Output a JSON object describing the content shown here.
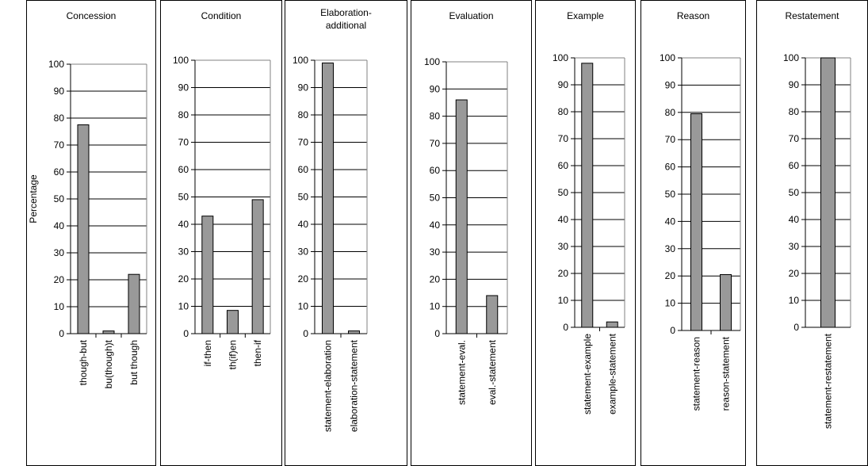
{
  "y_axis_label": "Percentage",
  "chart_data": [
    {
      "type": "bar",
      "title": "Concession",
      "categories": [
        "though-but",
        "bu(though)t",
        "but though"
      ],
      "values": [
        77.5,
        1,
        22
      ],
      "ylim": [
        0,
        100
      ],
      "yticks": [
        0,
        10,
        20,
        30,
        40,
        50,
        60,
        70,
        80,
        90,
        100
      ],
      "grid": true,
      "bar_color": "#999999"
    },
    {
      "type": "bar",
      "title": "Condition",
      "categories": [
        "if-then",
        "th(if)en",
        "then-if"
      ],
      "values": [
        43,
        8.5,
        49
      ],
      "ylim": [
        0,
        100
      ],
      "yticks": [
        0,
        10,
        20,
        30,
        40,
        50,
        60,
        70,
        80,
        90,
        100
      ],
      "grid": true,
      "bar_color": "#999999"
    },
    {
      "type": "bar",
      "title": "Elaboration-additional",
      "categories": [
        "statement-elaboration",
        "elaboration-statement"
      ],
      "values": [
        99,
        1
      ],
      "ylim": [
        0,
        100
      ],
      "yticks": [
        0,
        10,
        20,
        30,
        40,
        50,
        60,
        70,
        80,
        90,
        100
      ],
      "grid": true,
      "bar_color": "#999999"
    },
    {
      "type": "bar",
      "title": "Evaluation",
      "categories": [
        "statement-eval.",
        "eval.-statement"
      ],
      "values": [
        86,
        14
      ],
      "ylim": [
        0,
        100
      ],
      "yticks": [
        0,
        10,
        20,
        30,
        40,
        50,
        60,
        70,
        80,
        90,
        100
      ],
      "grid": true,
      "bar_color": "#999999"
    },
    {
      "type": "bar",
      "title": "Example",
      "categories": [
        "statement-example",
        "example-statement"
      ],
      "values": [
        98,
        2
      ],
      "ylim": [
        0,
        100
      ],
      "yticks": [
        0,
        10,
        20,
        30,
        40,
        50,
        60,
        70,
        80,
        90,
        100
      ],
      "grid": true,
      "bar_color": "#999999"
    },
    {
      "type": "bar",
      "title": "Reason",
      "categories": [
        "statement-reason",
        "reason-statement"
      ],
      "values": [
        79.5,
        20.5
      ],
      "ylim": [
        0,
        100
      ],
      "yticks": [
        0,
        10,
        20,
        30,
        40,
        50,
        60,
        70,
        80,
        90,
        100
      ],
      "grid": true,
      "bar_color": "#999999"
    },
    {
      "type": "bar",
      "title": "Restatement",
      "categories": [
        "statement-restatement"
      ],
      "values": [
        100
      ],
      "ylim": [
        0,
        100
      ],
      "yticks": [
        0,
        10,
        20,
        30,
        40,
        50,
        60,
        70,
        80,
        90,
        100
      ],
      "grid": true,
      "bar_color": "#999999"
    }
  ]
}
